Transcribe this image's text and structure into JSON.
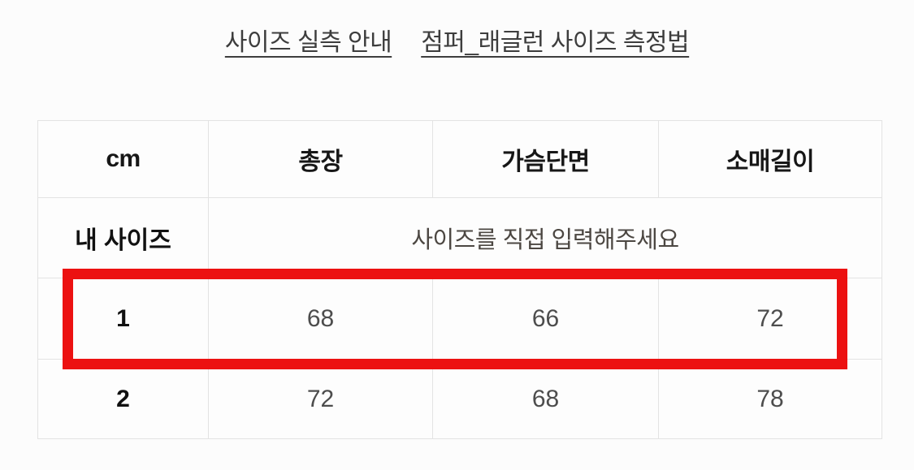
{
  "page": {
    "background": "#fcfcfc"
  },
  "title": {
    "links": [
      {
        "label": "사이즈 실측 안내"
      },
      {
        "label": "점퍼_래글런 사이즈 측정법"
      }
    ]
  },
  "size_table": {
    "unit_header": "cm",
    "columns": [
      "총장",
      "가슴단면",
      "소매길이"
    ],
    "my_size_row": {
      "label": "내 사이즈",
      "placeholder": "사이즈를 직접 입력해주세요"
    },
    "rows": [
      {
        "size": "1",
        "values": [
          "68",
          "66",
          "72"
        ],
        "highlighted": true
      },
      {
        "size": "2",
        "values": [
          "72",
          "68",
          "78"
        ],
        "highlighted": false
      }
    ],
    "highlight_color": "#ec1111",
    "grid_color": "#e3e3e3"
  }
}
